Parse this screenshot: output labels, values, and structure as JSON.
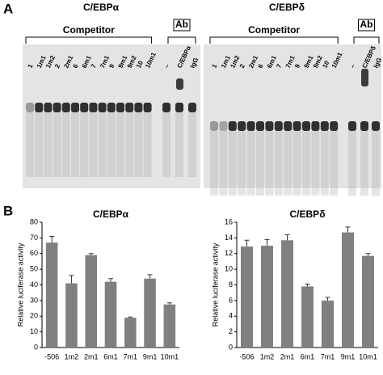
{
  "panel_labels": [
    "A",
    "B"
  ],
  "gels": [
    {
      "title": "C/EBPα",
      "competitor": "Competitor",
      "ab": "Ab",
      "lanes": [
        "1",
        "1m1",
        "1m2",
        "2",
        "2m1",
        "6",
        "6m1",
        "7",
        "7m1",
        "9",
        "9m1",
        "9m2",
        "10",
        "10m1",
        "–",
        "C/EBPα",
        "IgG"
      ]
    },
    {
      "title": "C/EBPδ",
      "competitor": "Competitor",
      "ab": "Ab",
      "lanes": [
        "1",
        "1m1",
        "1m2",
        "2",
        "2m1",
        "6",
        "6m1",
        "7",
        "7m1",
        "9",
        "9m1",
        "9m2",
        "10",
        "10m1",
        "–",
        "C/EBPδ",
        "IgG"
      ]
    }
  ],
  "chart_data": [
    {
      "type": "bar",
      "title": "C/EBPα",
      "y_label": "Relative luciferase activity",
      "categories": [
        "-506",
        "1m2",
        "2m1",
        "6m1",
        "7m1",
        "9m1",
        "10m1"
      ],
      "values": [
        67,
        41,
        59,
        42,
        19,
        44,
        27.5
      ],
      "errors": [
        4,
        5,
        1,
        2,
        0.5,
        2.5,
        1
      ],
      "color": "#808080",
      "ylim": [
        0,
        80
      ],
      "yticks": [
        0,
        10,
        20,
        30,
        40,
        50,
        60,
        70,
        80
      ]
    },
    {
      "type": "bar",
      "title": "C/EBPδ",
      "y_label": "Relative luciferase activity",
      "categories": [
        "-506",
        "1m2",
        "2m1",
        "6m1",
        "7m1",
        "9m1",
        "10m1"
      ],
      "values": [
        12.9,
        13.0,
        13.7,
        7.8,
        6.0,
        14.7,
        11.7
      ],
      "errors": [
        0.8,
        0.8,
        0.7,
        0.3,
        0.4,
        0.7,
        0.3
      ],
      "color": "#808080",
      "ylim": [
        0,
        16
      ],
      "yticks": [
        0,
        2,
        4,
        6,
        8,
        10,
        12,
        14,
        16
      ]
    }
  ]
}
